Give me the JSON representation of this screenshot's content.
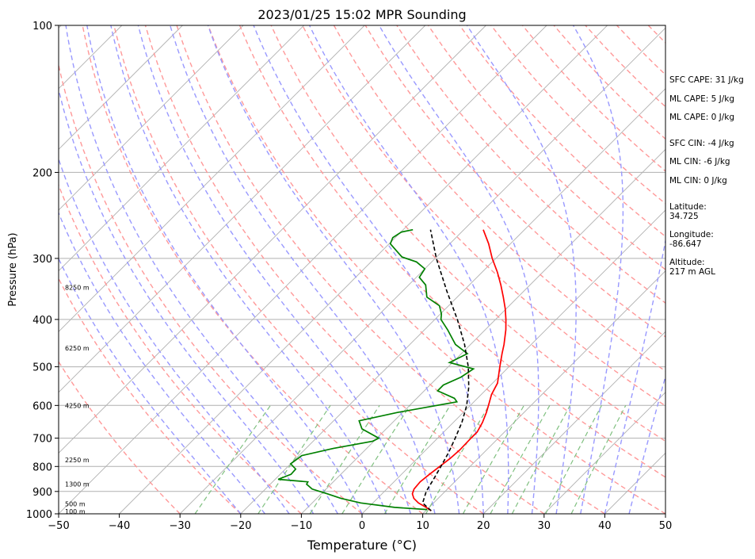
{
  "chart_data": {
    "type": "skew-t",
    "title": "2023/01/25 15:02 MPR Sounding",
    "xlabel": "Temperature (°C)",
    "ylabel": "Pressure (hPa)",
    "xlim": [
      -50,
      50
    ],
    "ylim": [
      1000,
      100
    ],
    "y_scale": "log",
    "x_ticks": [
      -50,
      -40,
      -30,
      -20,
      -10,
      0,
      10,
      20,
      30,
      40,
      50
    ],
    "x_tick_labels": [
      "−50",
      "−40",
      "−30",
      "−20",
      "−10",
      "0",
      "10",
      "20",
      "30",
      "40",
      "50"
    ],
    "y_ticks": [
      1000,
      900,
      800,
      700,
      600,
      500,
      400,
      300,
      200,
      100
    ],
    "height_labels": [
      {
        "text": "100 m",
        "p": 988
      },
      {
        "text": "500 m",
        "p": 954
      },
      {
        "text": "1300 m",
        "p": 869
      },
      {
        "text": "2250 m",
        "p": 776
      },
      {
        "text": "4250 m",
        "p": 600
      },
      {
        "text": "6250 m",
        "p": 458
      },
      {
        "text": "8250 m",
        "p": 344
      }
    ],
    "series": [
      {
        "color": "#ff0000",
        "style": "solid",
        "points": [
          [
            986,
            10.9
          ],
          [
            970,
            9.5
          ],
          [
            950,
            7.5
          ],
          [
            930,
            6.0
          ],
          [
            910,
            5.0
          ],
          [
            890,
            4.5
          ],
          [
            860,
            4.3
          ],
          [
            830,
            4.6
          ],
          [
            800,
            5.0
          ],
          [
            770,
            5.4
          ],
          [
            740,
            5.6
          ],
          [
            700,
            5.5
          ],
          [
            680,
            5.5
          ],
          [
            650,
            4.8
          ],
          [
            620,
            3.8
          ],
          [
            600,
            3.0
          ],
          [
            570,
            1.7
          ],
          [
            540,
            0.8
          ],
          [
            500,
            -1.5
          ],
          [
            470,
            -3.3
          ],
          [
            450,
            -4.5
          ],
          [
            420,
            -6.6
          ],
          [
            400,
            -8.3
          ],
          [
            380,
            -10.2
          ],
          [
            360,
            -12.4
          ],
          [
            340,
            -14.8
          ],
          [
            320,
            -17.5
          ],
          [
            300,
            -20.6
          ],
          [
            280,
            -23.6
          ],
          [
            262,
            -26.8
          ]
        ]
      },
      {
        "color": "#008000",
        "style": "solid",
        "points": [
          [
            980,
            10.0
          ],
          [
            970,
            4.3
          ],
          [
            950,
            -2.0
          ],
          [
            930,
            -6.0
          ],
          [
            910,
            -9.0
          ],
          [
            890,
            -12.3
          ],
          [
            870,
            -14.0
          ],
          [
            860,
            -14.2
          ],
          [
            850,
            -19.5
          ],
          [
            830,
            -18.2
          ],
          [
            810,
            -18.3
          ],
          [
            790,
            -20.0
          ],
          [
            760,
            -19.5
          ],
          [
            735,
            -15.5
          ],
          [
            710,
            -10.2
          ],
          [
            700,
            -9.7
          ],
          [
            670,
            -14.0
          ],
          [
            645,
            -15.8
          ],
          [
            620,
            -10.8
          ],
          [
            590,
            -2.8
          ],
          [
            580,
            -3.8
          ],
          [
            560,
            -7.8
          ],
          [
            545,
            -7.8
          ],
          [
            525,
            -6.2
          ],
          [
            505,
            -5.5
          ],
          [
            490,
            -10.5
          ],
          [
            470,
            -9.0
          ],
          [
            450,
            -12.5
          ],
          [
            420,
            -16.2
          ],
          [
            400,
            -19.0
          ],
          [
            390,
            -19.8
          ],
          [
            375,
            -21.5
          ],
          [
            360,
            -25.0
          ],
          [
            340,
            -27.2
          ],
          [
            328,
            -29.5
          ],
          [
            315,
            -30.0
          ],
          [
            305,
            -32.5
          ],
          [
            298,
            -35.7
          ],
          [
            290,
            -37.5
          ],
          [
            280,
            -39.8
          ],
          [
            272,
            -40.4
          ],
          [
            265,
            -39.9
          ],
          [
            262,
            -38.4
          ]
        ]
      },
      {
        "color": "#000000",
        "style": "dashed",
        "points": [
          [
            986,
            10.9
          ],
          [
            950,
            8.2
          ],
          [
            900,
            6.9
          ],
          [
            850,
            6.1
          ],
          [
            800,
            5.2
          ],
          [
            750,
            4.2
          ],
          [
            700,
            2.9
          ],
          [
            650,
            1.4
          ],
          [
            600,
            -0.6
          ],
          [
            550,
            -3.3
          ],
          [
            500,
            -6.7
          ],
          [
            450,
            -11.0
          ],
          [
            400,
            -16.3
          ],
          [
            350,
            -22.7
          ],
          [
            300,
            -29.8
          ],
          [
            262,
            -35.5
          ]
        ]
      }
    ],
    "annotations": [
      "SFC CAPE: 31 J/kg",
      "ML CAPE: 5 J/kg",
      "ML CAPE: 0 J/kg",
      "SFC CIN: -4 J/kg",
      "ML CIN: -6 J/kg",
      "ML CIN: 0 J/kg",
      "Latitude:\n34.725",
      "Longitude:\n-86.647",
      "Altitude:\n217 m AGL"
    ],
    "background_lines": {
      "isotherms_color": "#b0b0b0",
      "dry_adiabats_color": "#ff9999",
      "moist_adiabats_color": "#9999ff",
      "mixing_ratio_color": "#80c080"
    }
  }
}
